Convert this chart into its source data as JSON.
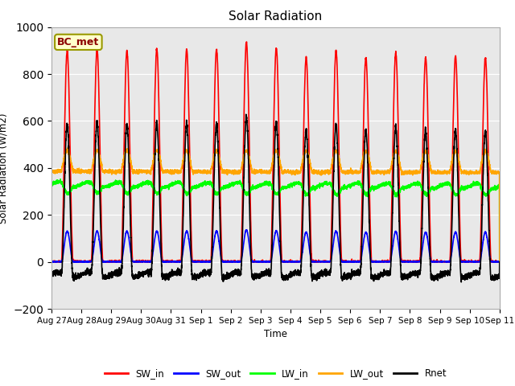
{
  "title": "Solar Radiation",
  "ylabel": "Solar Radiation (W/m2)",
  "xlabel": "Time",
  "ylim": [
    -200,
    1000
  ],
  "n_days": 15,
  "bg_color": "#e8e8e8",
  "label_box": "BC_met",
  "tick_labels": [
    "Aug 27",
    "Aug 28",
    "Aug 29",
    "Aug 30",
    "Aug 31",
    "Sep 1",
    "Sep 2",
    "Sep 3",
    "Sep 4",
    "Sep 5",
    "Sep 6",
    "Sep 7",
    "Sep 8",
    "Sep 9",
    "Sep 10",
    "Sep 11"
  ],
  "sw_in_peaks": [
    900,
    905,
    900,
    905,
    905,
    905,
    935,
    910,
    870,
    900,
    870,
    890,
    870,
    875,
    870
  ],
  "series": {
    "SW_in": {
      "color": "#ff0000",
      "lw": 1.2
    },
    "SW_out": {
      "color": "#0000ff",
      "lw": 1.2
    },
    "LW_in": {
      "color": "#00ff00",
      "lw": 1.2
    },
    "LW_out": {
      "color": "#ffa500",
      "lw": 1.2
    },
    "Rnet": {
      "color": "#000000",
      "lw": 1.2
    }
  }
}
